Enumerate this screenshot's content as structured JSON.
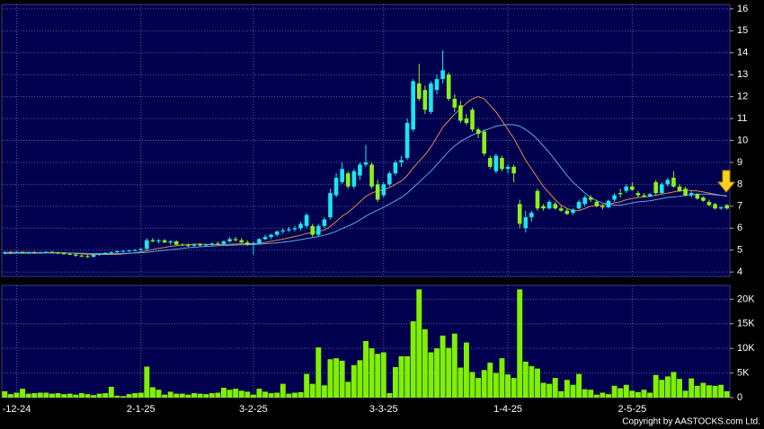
{
  "chart_data": [
    {
      "type": "candlestick",
      "categories": [
        null,
        null,
        "-12-24",
        null,
        null,
        null,
        null,
        null,
        null,
        null,
        null,
        null,
        null,
        null,
        null,
        null,
        null,
        null,
        null,
        null,
        null,
        null,
        null,
        "2-1-25",
        null,
        null,
        null,
        null,
        null,
        null,
        null,
        null,
        null,
        null,
        null,
        null,
        null,
        null,
        null,
        null,
        null,
        null,
        "3-2-25",
        null,
        null,
        null,
        null,
        null,
        null,
        null,
        null,
        null,
        null,
        null,
        null,
        null,
        null,
        null,
        null,
        null,
        null,
        null,
        null,
        null,
        "3-3-25",
        null,
        null,
        null,
        null,
        null,
        null,
        null,
        null,
        null,
        null,
        null,
        null,
        null,
        null,
        null,
        null,
        null,
        null,
        null,
        null,
        "1-4-25",
        null,
        null,
        null,
        null,
        null,
        null,
        null,
        null,
        null,
        null,
        null,
        null,
        null,
        null,
        null,
        null,
        null,
        null,
        null,
        null,
        "2-5-25",
        null,
        null,
        null,
        null,
        null,
        null,
        null,
        null,
        null,
        null,
        null,
        null,
        null,
        null,
        null,
        null
      ],
      "open": [
        4.85,
        4.9,
        4.88,
        4.9,
        4.87,
        4.9,
        4.88,
        4.9,
        4.92,
        4.88,
        4.85,
        4.83,
        4.8,
        4.75,
        4.72,
        4.7,
        4.78,
        4.82,
        4.88,
        4.9,
        4.95,
        4.96,
        4.98,
        5.0,
        5.05,
        5.45,
        5.4,
        5.45,
        5.35,
        5.4,
        5.25,
        5.22,
        5.2,
        5.25,
        5.22,
        5.25,
        5.3,
        5.28,
        5.4,
        5.5,
        5.45,
        5.35,
        5.25,
        5.3,
        5.5,
        5.6,
        5.7,
        5.85,
        5.9,
        5.95,
        6.0,
        6.1,
        6.1,
        5.7,
        6.1,
        6.5,
        7.5,
        8.1,
        8.5,
        7.9,
        8.4,
        8.9,
        8.9,
        8.0,
        7.5,
        8.0,
        8.5,
        9.0,
        9.2,
        10.5,
        12.6,
        12.3,
        11.3,
        12.3,
        12.8,
        13.0,
        11.9,
        11.6,
        11.0,
        11.4,
        10.5,
        10.4,
        9.2,
        8.6,
        9.2,
        8.7,
        8.8,
        7.1,
        6.0,
        6.5,
        7.7,
        7.0,
        6.9,
        7.1,
        6.9,
        6.8,
        6.7,
        6.9,
        7.1,
        7.4,
        7.2,
        7.0,
        6.95,
        7.3,
        7.6,
        7.7,
        7.9,
        7.6,
        7.5,
        7.45,
        8.1,
        7.6,
        8.0,
        8.3,
        7.9,
        7.8,
        7.5,
        7.55,
        7.4,
        7.2,
        7.1,
        6.9,
        7.05
      ],
      "high": [
        4.95,
        4.95,
        4.95,
        4.95,
        4.92,
        4.95,
        4.93,
        4.95,
        4.95,
        4.92,
        4.9,
        4.88,
        4.85,
        4.8,
        4.78,
        4.8,
        4.85,
        4.9,
        4.95,
        4.98,
        5.0,
        5.02,
        5.05,
        5.1,
        5.55,
        5.55,
        5.5,
        5.5,
        5.45,
        5.45,
        5.32,
        5.3,
        5.3,
        5.32,
        5.3,
        5.35,
        5.4,
        5.45,
        5.6,
        5.6,
        5.55,
        5.45,
        5.4,
        5.55,
        5.7,
        5.75,
        5.9,
        6.0,
        6.05,
        6.1,
        6.3,
        6.7,
        6.2,
        6.2,
        6.5,
        7.8,
        8.5,
        9.0,
        8.6,
        8.7,
        9.0,
        9.8,
        9.0,
        8.2,
        8.1,
        8.6,
        9.1,
        9.3,
        11.0,
        12.8,
        13.5,
        12.5,
        12.7,
        13.0,
        14.1,
        13.1,
        12.1,
        11.8,
        11.2,
        11.5,
        10.6,
        10.5,
        9.3,
        9.4,
        9.3,
        8.9,
        8.9,
        7.3,
        6.8,
        6.8,
        7.8,
        7.1,
        7.3,
        7.2,
        7.0,
        6.9,
        6.9,
        7.3,
        7.5,
        7.5,
        7.3,
        7.1,
        7.3,
        7.6,
        7.8,
        8.0,
        8.1,
        7.7,
        7.6,
        7.6,
        8.2,
        8.1,
        8.3,
        8.6,
        8.0,
        7.9,
        7.7,
        7.6,
        7.45,
        7.3,
        7.15,
        7.0,
        7.1
      ],
      "low": [
        4.8,
        4.85,
        4.85,
        4.85,
        4.83,
        4.86,
        4.85,
        4.86,
        4.85,
        4.82,
        4.8,
        4.78,
        4.7,
        4.68,
        4.65,
        4.66,
        4.74,
        4.78,
        4.84,
        4.86,
        4.9,
        4.92,
        4.94,
        4.96,
        5.0,
        5.35,
        5.3,
        5.32,
        5.25,
        5.22,
        5.18,
        5.15,
        5.15,
        5.18,
        5.16,
        5.2,
        5.24,
        5.25,
        5.35,
        5.4,
        5.3,
        5.2,
        4.8,
        5.25,
        5.45,
        5.5,
        5.62,
        5.75,
        5.82,
        5.85,
        5.9,
        6.0,
        5.6,
        5.6,
        6.0,
        6.4,
        7.4,
        8.0,
        7.8,
        7.8,
        8.2,
        8.8,
        7.8,
        7.2,
        7.4,
        7.9,
        8.4,
        8.8,
        9.1,
        10.4,
        11.8,
        11.2,
        11.2,
        12.1,
        12.6,
        11.8,
        11.3,
        10.8,
        10.7,
        10.4,
        10.1,
        9.3,
        8.7,
        8.5,
        8.6,
        8.5,
        8.1,
        6.0,
        5.8,
        6.3,
        6.8,
        6.8,
        6.85,
        6.85,
        6.75,
        6.6,
        6.6,
        6.85,
        7.0,
        7.2,
        6.95,
        6.85,
        6.9,
        7.2,
        7.4,
        7.6,
        7.7,
        7.4,
        7.4,
        7.4,
        7.5,
        7.55,
        7.9,
        7.85,
        7.65,
        7.45,
        7.4,
        7.3,
        7.2,
        7.0,
        6.85,
        6.85,
        6.85
      ],
      "close": [
        4.9,
        4.88,
        4.9,
        4.87,
        4.9,
        4.88,
        4.9,
        4.92,
        4.88,
        4.85,
        4.83,
        4.8,
        4.75,
        4.72,
        4.7,
        4.78,
        4.82,
        4.88,
        4.9,
        4.95,
        4.96,
        4.98,
        5.0,
        5.05,
        5.45,
        5.4,
        5.45,
        5.35,
        5.4,
        5.25,
        5.22,
        5.2,
        5.25,
        5.22,
        5.25,
        5.3,
        5.28,
        5.4,
        5.5,
        5.45,
        5.35,
        5.25,
        5.3,
        5.5,
        5.6,
        5.7,
        5.85,
        5.9,
        5.95,
        6.0,
        6.2,
        6.6,
        5.7,
        6.1,
        6.4,
        7.6,
        8.3,
        8.7,
        7.9,
        8.6,
        8.9,
        9.0,
        7.9,
        7.3,
        8.0,
        8.5,
        9.0,
        9.1,
        10.8,
        12.7,
        11.9,
        11.4,
        12.6,
        12.8,
        13.2,
        11.9,
        11.5,
        10.9,
        10.8,
        10.5,
        10.3,
        9.4,
        8.8,
        9.3,
        8.7,
        8.8,
        8.5,
        6.2,
        6.5,
        6.7,
        6.9,
        6.9,
        7.2,
        6.9,
        6.8,
        6.65,
        6.85,
        7.2,
        7.4,
        7.3,
        7.0,
        6.95,
        7.25,
        7.5,
        7.55,
        7.9,
        7.75,
        7.5,
        7.45,
        7.55,
        7.6,
        8.0,
        8.2,
        7.9,
        7.7,
        7.5,
        7.6,
        7.35,
        7.25,
        7.05,
        6.9,
        6.95,
        6.9
      ],
      "up_color": "#19e6f0",
      "down_color": "#8cf01e",
      "flat_color": "#e0e0e0",
      "lines": [
        {
          "color": "#e08a46",
          "values": [
            4.9,
            4.9,
            4.9,
            4.9,
            4.9,
            4.89,
            4.89,
            4.89,
            4.89,
            4.89,
            4.88,
            4.87,
            4.85,
            4.83,
            4.81,
            4.8,
            4.8,
            4.8,
            4.8,
            4.81,
            4.83,
            4.85,
            4.88,
            4.92,
            4.97,
            5.03,
            5.08,
            5.12,
            5.17,
            5.2,
            5.23,
            5.25,
            5.27,
            5.28,
            5.26,
            5.25,
            5.25,
            5.26,
            5.27,
            5.28,
            5.29,
            5.29,
            5.3,
            5.32,
            5.35,
            5.4,
            5.45,
            5.5,
            5.56,
            5.62,
            5.68,
            5.76,
            5.8,
            5.85,
            5.92,
            6.08,
            6.3,
            6.55,
            6.72,
            6.95,
            7.2,
            7.45,
            7.6,
            7.7,
            7.75,
            7.85,
            8.0,
            8.15,
            8.4,
            8.75,
            9.05,
            9.35,
            9.7,
            10.15,
            10.6,
            10.9,
            11.2,
            11.45,
            11.7,
            11.9,
            12.0,
            11.9,
            11.6,
            11.3,
            10.9,
            10.5,
            10.1,
            9.6,
            9.1,
            8.7,
            8.3,
            7.9,
            7.6,
            7.3,
            7.05,
            6.9,
            6.8,
            6.8,
            6.9,
            7.0,
            7.05,
            7.05,
            7.1,
            7.15,
            7.2,
            7.3,
            7.35,
            7.4,
            7.42,
            7.45,
            7.5,
            7.55,
            7.6,
            7.65,
            7.7,
            7.72,
            7.72,
            7.7,
            7.65,
            7.6,
            7.55,
            7.5,
            7.45
          ]
        },
        {
          "color": "#5aa8e8",
          "values": [
            4.85,
            4.85,
            4.86,
            4.86,
            4.86,
            4.86,
            4.87,
            4.87,
            4.87,
            4.87,
            4.87,
            4.87,
            4.86,
            4.86,
            4.85,
            4.85,
            4.84,
            4.84,
            4.84,
            4.84,
            4.85,
            4.86,
            4.87,
            4.88,
            4.9,
            4.93,
            4.96,
            4.99,
            5.02,
            5.05,
            5.08,
            5.11,
            5.13,
            5.15,
            5.17,
            5.18,
            5.2,
            5.21,
            5.22,
            5.23,
            5.24,
            5.25,
            5.26,
            5.27,
            5.29,
            5.31,
            5.33,
            5.36,
            5.39,
            5.43,
            5.48,
            5.53,
            5.57,
            5.62,
            5.68,
            5.76,
            5.86,
            5.98,
            6.1,
            6.22,
            6.38,
            6.55,
            6.7,
            6.82,
            6.95,
            7.1,
            7.25,
            7.4,
            7.6,
            7.85,
            8.1,
            8.35,
            8.6,
            8.9,
            9.2,
            9.5,
            9.75,
            9.95,
            10.1,
            10.25,
            10.35,
            10.45,
            10.55,
            10.65,
            10.7,
            10.72,
            10.72,
            10.65,
            10.5,
            10.3,
            10.05,
            9.75,
            9.45,
            9.1,
            8.75,
            8.4,
            8.1,
            7.85,
            7.6,
            7.4,
            7.25,
            7.15,
            7.1,
            7.05,
            7.05,
            7.1,
            7.15,
            7.2,
            7.22,
            7.25,
            7.3,
            7.35,
            7.4,
            7.42,
            7.45,
            7.5,
            7.52,
            7.55,
            7.55,
            7.55,
            7.52,
            7.5,
            7.48
          ]
        }
      ],
      "ylim": [
        3.8,
        16.2
      ],
      "yticks": [
        4,
        5,
        6,
        7,
        8,
        9,
        10,
        11,
        12,
        13,
        14,
        15,
        16
      ],
      "grid": true
    },
    {
      "type": "bar",
      "values": [
        1300,
        700,
        1000,
        1800,
        800,
        900,
        1000,
        1000,
        800,
        900,
        700,
        800,
        600,
        900,
        700,
        500,
        800,
        900,
        2200,
        400,
        300,
        700,
        900,
        1000,
        6300,
        2100,
        1600,
        600,
        1200,
        800,
        800,
        600,
        900,
        800,
        700,
        900,
        1000,
        2000,
        1600,
        1800,
        1400,
        1200,
        600,
        1800,
        1200,
        900,
        1000,
        2800,
        800,
        1000,
        1100,
        4800,
        2800,
        10200,
        2500,
        7800,
        8000,
        7500,
        3200,
        6600,
        7600,
        11500,
        10000,
        8900,
        9200,
        900,
        6200,
        8400,
        8400,
        15500,
        22000,
        13900,
        9200,
        10000,
        12600,
        10100,
        13000,
        6100,
        11200,
        5200,
        4000,
        5600,
        7100,
        5000,
        8000,
        4700,
        4000,
        22000,
        7300,
        6400,
        5900,
        3000,
        2800,
        4000,
        1300,
        3600,
        2600,
        4800,
        1700,
        1600,
        600,
        1000,
        700,
        2400,
        1900,
        2600,
        1400,
        1100,
        1600,
        1000,
        4600,
        3600,
        4300,
        5200,
        3800,
        1400,
        3900,
        2400,
        3000,
        2500,
        2400,
        2600,
        1300
      ],
      "color": "#80f000",
      "ylim": [
        0,
        22800
      ],
      "yticks": [
        0,
        {
          "value": 5000,
          "label": "5K"
        },
        {
          "value": 10000,
          "label": "10K"
        },
        {
          "value": 15000,
          "label": "15K"
        },
        {
          "value": 20000,
          "label": "20K"
        }
      ],
      "grid": true
    }
  ],
  "footer": "Copyright by AASTOCKS.com Ltd."
}
